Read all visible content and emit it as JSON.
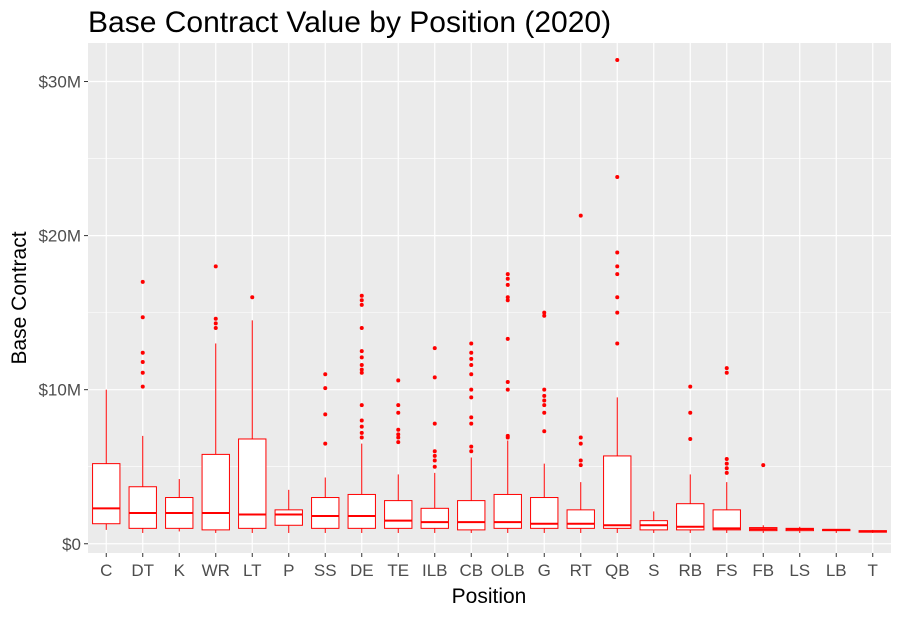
{
  "chart_data": {
    "type": "boxplot",
    "title": "Base Contract Value by Position (2020)",
    "xlabel": "Position",
    "ylabel": "Base Contract",
    "ylim": [
      -0.6,
      32.5
    ],
    "unit": "millions USD",
    "y_ticks": [
      {
        "value": 0,
        "label": "$0"
      },
      {
        "value": 10,
        "label": "$10M"
      },
      {
        "value": 20,
        "label": "$20M"
      },
      {
        "value": 30,
        "label": "$30M"
      }
    ],
    "grid": true,
    "legend": "none",
    "colors": {
      "panel": "#ebebeb",
      "grid": "#ffffff",
      "box": "#ff0000",
      "fill": "#ffffff"
    },
    "categories": [
      "C",
      "DT",
      "K",
      "WR",
      "LT",
      "P",
      "SS",
      "DE",
      "TE",
      "ILB",
      "CB",
      "OLB",
      "G",
      "RT",
      "QB",
      "S",
      "RB",
      "FS",
      "FB",
      "LS",
      "LB",
      "T"
    ],
    "boxes": [
      {
        "label": "C",
        "whisker_low": 0.9,
        "q1": 1.3,
        "median": 2.3,
        "q3": 5.2,
        "whisker_high": 10.0,
        "outliers": []
      },
      {
        "label": "DT",
        "whisker_low": 0.7,
        "q1": 1.0,
        "median": 2.0,
        "q3": 3.7,
        "whisker_high": 7.0,
        "outliers": [
          10.2,
          11.1,
          11.8,
          12.4,
          14.7,
          17.0
        ]
      },
      {
        "label": "K",
        "whisker_low": 0.8,
        "q1": 1.0,
        "median": 2.0,
        "q3": 3.0,
        "whisker_high": 4.2,
        "outliers": []
      },
      {
        "label": "WR",
        "whisker_low": 0.7,
        "q1": 0.9,
        "median": 2.0,
        "q3": 5.8,
        "whisker_high": 13.0,
        "outliers": [
          14.0,
          14.3,
          14.6,
          18.0
        ]
      },
      {
        "label": "LT",
        "whisker_low": 0.7,
        "q1": 1.0,
        "median": 1.9,
        "q3": 6.8,
        "whisker_high": 14.5,
        "outliers": [
          16.0
        ]
      },
      {
        "label": "P",
        "whisker_low": 0.7,
        "q1": 1.2,
        "median": 1.9,
        "q3": 2.2,
        "whisker_high": 3.5,
        "outliers": []
      },
      {
        "label": "SS",
        "whisker_low": 0.7,
        "q1": 1.0,
        "median": 1.8,
        "q3": 3.0,
        "whisker_high": 4.3,
        "outliers": [
          6.5,
          8.4,
          10.1,
          11.0
        ]
      },
      {
        "label": "DE",
        "whisker_low": 0.7,
        "q1": 1.0,
        "median": 1.8,
        "q3": 3.2,
        "whisker_high": 6.5,
        "outliers": [
          6.9,
          7.2,
          7.6,
          8.0,
          9.0,
          11.1,
          11.3,
          11.6,
          12.1,
          12.5,
          14.0,
          15.5,
          15.8,
          16.1
        ]
      },
      {
        "label": "TE",
        "whisker_low": 0.7,
        "q1": 1.0,
        "median": 1.5,
        "q3": 2.8,
        "whisker_high": 4.5,
        "outliers": [
          6.6,
          6.9,
          7.1,
          7.4,
          8.5,
          9.0,
          10.6
        ]
      },
      {
        "label": "ILB",
        "whisker_low": 0.7,
        "q1": 1.0,
        "median": 1.4,
        "q3": 2.3,
        "whisker_high": 4.6,
        "outliers": [
          5.0,
          5.4,
          5.7,
          6.0,
          7.8,
          10.8,
          12.7
        ]
      },
      {
        "label": "CB",
        "whisker_low": 0.7,
        "q1": 0.9,
        "median": 1.4,
        "q3": 2.8,
        "whisker_high": 5.6,
        "outliers": [
          6.0,
          6.3,
          7.8,
          8.2,
          9.5,
          10.0,
          11.0,
          11.6,
          12.0,
          12.4,
          13.0
        ]
      },
      {
        "label": "OLB",
        "whisker_low": 0.7,
        "q1": 1.0,
        "median": 1.4,
        "q3": 3.2,
        "whisker_high": 6.7,
        "outliers": [
          6.9,
          7.0,
          10.0,
          10.5,
          13.3,
          15.8,
          16.0,
          16.8,
          17.2,
          17.5
        ]
      },
      {
        "label": "G",
        "whisker_low": 0.7,
        "q1": 1.0,
        "median": 1.3,
        "q3": 3.0,
        "whisker_high": 5.2,
        "outliers": [
          7.3,
          8.5,
          9.0,
          9.3,
          9.6,
          10.0,
          14.8,
          15.0
        ]
      },
      {
        "label": "RT",
        "whisker_low": 0.7,
        "q1": 1.0,
        "median": 1.3,
        "q3": 2.2,
        "whisker_high": 4.0,
        "outliers": [
          5.1,
          5.4,
          6.5,
          6.9,
          21.3
        ]
      },
      {
        "label": "QB",
        "whisker_low": 0.7,
        "q1": 1.0,
        "median": 1.2,
        "q3": 5.7,
        "whisker_high": 9.5,
        "outliers": [
          13.0,
          15.0,
          16.0,
          17.5,
          18.0,
          18.9,
          23.8,
          31.4
        ]
      },
      {
        "label": "S",
        "whisker_low": 0.7,
        "q1": 0.9,
        "median": 1.2,
        "q3": 1.5,
        "whisker_high": 2.1,
        "outliers": []
      },
      {
        "label": "RB",
        "whisker_low": 0.7,
        "q1": 0.9,
        "median": 1.1,
        "q3": 2.6,
        "whisker_high": 4.5,
        "outliers": [
          6.8,
          8.5,
          10.2
        ]
      },
      {
        "label": "FS",
        "whisker_low": 0.7,
        "q1": 0.9,
        "median": 1.0,
        "q3": 2.2,
        "whisker_high": 4.0,
        "outliers": [
          4.6,
          4.9,
          5.2,
          5.5,
          11.1,
          11.4
        ]
      },
      {
        "label": "FB",
        "whisker_low": 0.7,
        "q1": 0.85,
        "median": 0.95,
        "q3": 1.05,
        "whisker_high": 1.2,
        "outliers": [
          5.1
        ]
      },
      {
        "label": "LS",
        "whisker_low": 0.7,
        "q1": 0.85,
        "median": 0.95,
        "q3": 1.0,
        "whisker_high": 1.1,
        "outliers": []
      },
      {
        "label": "LB",
        "whisker_low": 0.7,
        "q1": 0.85,
        "median": 0.9,
        "q3": 0.93,
        "whisker_high": 0.95,
        "outliers": []
      },
      {
        "label": "T",
        "whisker_low": 0.7,
        "q1": 0.75,
        "median": 0.8,
        "q3": 0.85,
        "whisker_high": 0.9,
        "outliers": []
      }
    ]
  }
}
